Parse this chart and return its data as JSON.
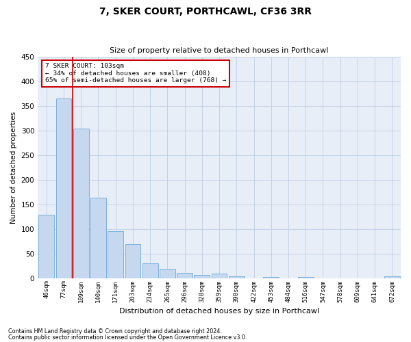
{
  "title": "7, SKER COURT, PORTHCAWL, CF36 3RR",
  "subtitle": "Size of property relative to detached houses in Porthcawl",
  "xlabel": "Distribution of detached houses by size in Porthcawl",
  "ylabel": "Number of detached properties",
  "bar_labels": [
    "46sqm",
    "77sqm",
    "109sqm",
    "140sqm",
    "171sqm",
    "203sqm",
    "234sqm",
    "265sqm",
    "296sqm",
    "328sqm",
    "359sqm",
    "390sqm",
    "422sqm",
    "453sqm",
    "484sqm",
    "516sqm",
    "547sqm",
    "578sqm",
    "609sqm",
    "641sqm",
    "672sqm"
  ],
  "bar_values": [
    128,
    365,
    303,
    164,
    95,
    69,
    30,
    19,
    10,
    6,
    9,
    4,
    0,
    2,
    0,
    2,
    0,
    0,
    0,
    0,
    4
  ],
  "bar_color": "#c5d8f0",
  "bar_edge_color": "#6faad8",
  "property_line_color": "#cc0000",
  "annotation_text": "7 SKER COURT: 103sqm\n← 34% of detached houses are smaller (408)\n65% of semi-detached houses are larger (768) →",
  "annotation_box_color": "#cc0000",
  "ylim": [
    0,
    450
  ],
  "yticks": [
    0,
    50,
    100,
    150,
    200,
    250,
    300,
    350,
    400,
    450
  ],
  "footnote1": "Contains HM Land Registry data © Crown copyright and database right 2024.",
  "footnote2": "Contains public sector information licensed under the Open Government Licence v3.0.",
  "bg_color": "#e8eef8",
  "grid_color": "#b8c8dc"
}
